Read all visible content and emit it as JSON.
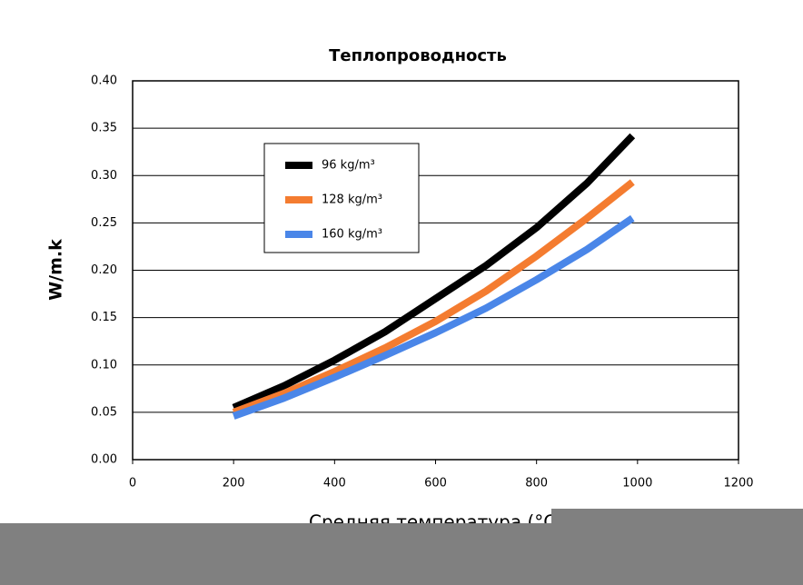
{
  "chart_data": {
    "type": "line",
    "title": "Теплопроводность",
    "x_label": "Средняя температура (°C)",
    "y_label": "W/m.k",
    "x": [
      200,
      300,
      400,
      500,
      600,
      700,
      800,
      900,
      990
    ],
    "series": [
      {
        "name": "96 kg/m³",
        "color": "#000000",
        "values": [
          0.055,
          0.078,
          0.105,
          0.135,
          0.17,
          0.205,
          0.245,
          0.292,
          0.342
        ]
      },
      {
        "name": "128 kg/m³",
        "color": "#f47c30",
        "values": [
          0.05,
          0.07,
          0.093,
          0.118,
          0.146,
          0.178,
          0.215,
          0.255,
          0.293
        ]
      },
      {
        "name": "160 kg/m³",
        "color": "#4a86e8",
        "values": [
          0.046,
          0.065,
          0.087,
          0.11,
          0.134,
          0.16,
          0.19,
          0.222,
          0.255
        ]
      }
    ],
    "xlim": [
      0,
      1200
    ],
    "xticks": [
      0,
      200,
      400,
      600,
      800,
      1000,
      1200
    ],
    "ylim": [
      0,
      0.4
    ],
    "yticks": [
      {
        "value": 0,
        "label": "0.00"
      },
      {
        "value": 0.05,
        "label": "0.05"
      },
      {
        "value": 0.1,
        "label": "0.10"
      },
      {
        "value": 0.15,
        "label": "0.15"
      },
      {
        "value": 0.2,
        "label": "0.20"
      },
      {
        "value": 0.25,
        "label": "0.25"
      },
      {
        "value": 0.3,
        "label": "0.30"
      },
      {
        "value": 0.35,
        "label": "0.35"
      },
      {
        "value": 0.4,
        "label": "0.40"
      }
    ],
    "grid": true
  }
}
